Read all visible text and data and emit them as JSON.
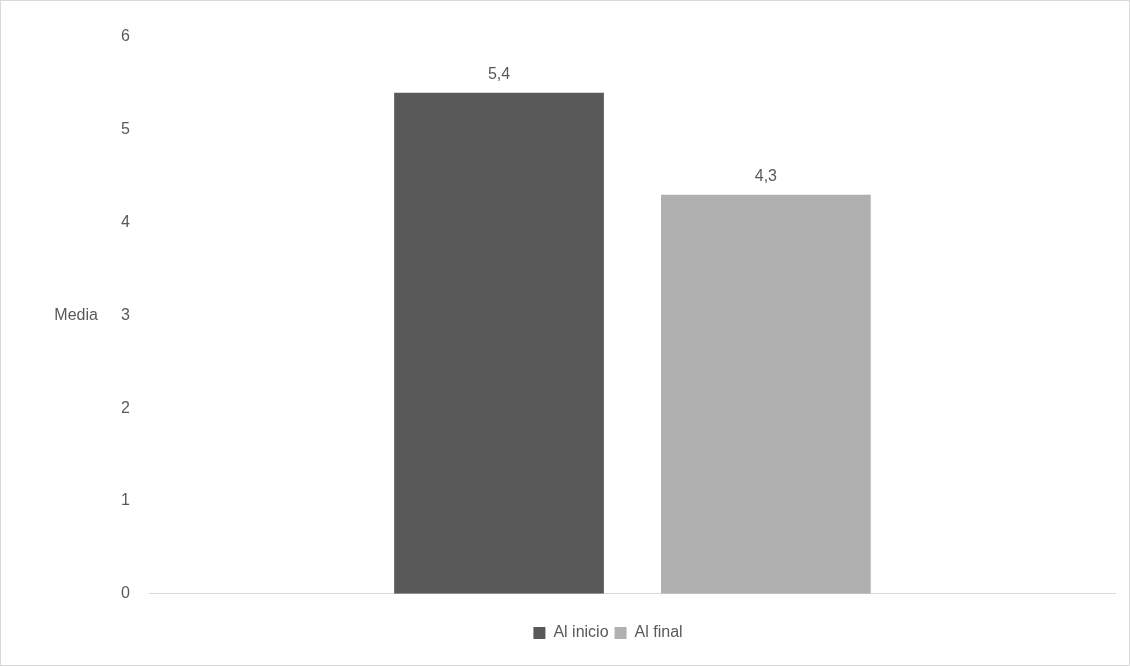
{
  "chart_data": {
    "type": "bar",
    "ylabel": "Media",
    "categories": [
      null
    ],
    "series": [
      {
        "name": "Al inicio",
        "color": "#595959",
        "values": [
          5.4
        ],
        "value_labels": [
          "5,4"
        ]
      },
      {
        "name": "Al final",
        "color": "#b0b0b0",
        "values": [
          4.3
        ],
        "value_labels": [
          "4,3"
        ]
      }
    ],
    "ylim": [
      0,
      6
    ],
    "yticks": [
      0,
      1,
      2,
      3,
      4,
      5,
      6
    ],
    "grid": false,
    "legend": "bottom"
  }
}
